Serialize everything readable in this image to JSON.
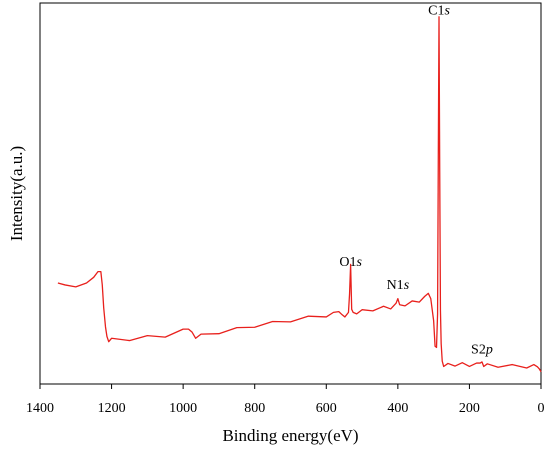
{
  "chart_data": {
    "type": "line",
    "xlabel": "Binding energy(eV)",
    "ylabel": "Intensity(a.u.)",
    "xlim": [
      1400,
      0
    ],
    "x_reversed": true,
    "ylim": [
      0,
      100
    ],
    "x_ticks": [
      1400,
      1200,
      1000,
      800,
      600,
      400,
      200,
      0
    ],
    "grid": false,
    "line_color": "#e8201c",
    "annotations": [
      {
        "element": "C1",
        "orbital": "s",
        "x": 285,
        "y": 97
      },
      {
        "element": "O1",
        "orbital": "s",
        "x": 532,
        "y": 31
      },
      {
        "element": "N1",
        "orbital": "s",
        "x": 400,
        "y": 25
      },
      {
        "element": "S2",
        "orbital": "p",
        "x": 165,
        "y": 8
      }
    ],
    "series": [
      {
        "x": [
          1350,
          1330,
          1300,
          1270,
          1250,
          1238,
          1230,
          1226,
          1222,
          1217,
          1213,
          1208,
          1200,
          1150,
          1100,
          1050,
          1000,
          985,
          975,
          965,
          950,
          900,
          850,
          800,
          750,
          700,
          650,
          600,
          580,
          565,
          556,
          548,
          538,
          535,
          532,
          529,
          525,
          515,
          500,
          470,
          440,
          420,
          405,
          400,
          395,
          380,
          360,
          340,
          325,
          315,
          308,
          300,
          296,
          292,
          289,
          287,
          285,
          283,
          281,
          279,
          276,
          272,
          260,
          240,
          220,
          200,
          180,
          170,
          165,
          160,
          150,
          120,
          80,
          40,
          20,
          10,
          5,
          0
        ],
        "y": [
          26.5,
          26.0,
          25.5,
          26.5,
          28.0,
          29.5,
          29.5,
          26.0,
          20.0,
          15.0,
          12.5,
          11.5,
          11.6,
          11.8,
          12.3,
          12.7,
          14.0,
          14.8,
          13.2,
          12.4,
          12.7,
          13.6,
          14.4,
          15.3,
          16.0,
          16.7,
          17.4,
          18.0,
          18.4,
          19.4,
          17.8,
          18.0,
          18.4,
          24.0,
          31.0,
          20.0,
          18.4,
          18.8,
          19.1,
          19.6,
          20.0,
          20.1,
          20.8,
          22.8,
          20.4,
          20.9,
          21.4,
          21.9,
          22.6,
          24.2,
          22.0,
          17.0,
          9.5,
          10.0,
          18.0,
          60.0,
          96.0,
          56.0,
          19.0,
          11.0,
          5.6,
          5.0,
          5.0,
          5.1,
          5.2,
          5.0,
          5.1,
          5.9,
          5.4,
          5.0,
          4.9,
          4.8,
          4.7,
          4.6,
          4.7,
          4.5,
          4.0,
          3.2
        ]
      }
    ]
  }
}
